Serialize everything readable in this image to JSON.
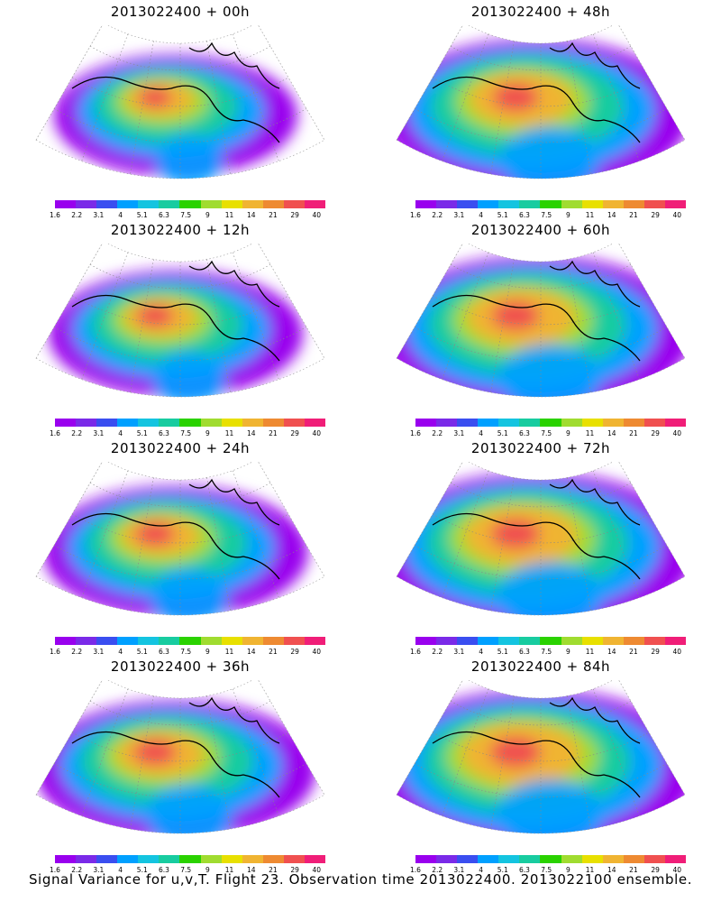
{
  "panels": [
    {
      "title": "2013022400 + 00h",
      "intensity": 0.35,
      "spread": 0.25
    },
    {
      "title": "2013022400 + 48h",
      "intensity": 0.75,
      "spread": 0.85
    },
    {
      "title": "2013022400 + 12h",
      "intensity": 0.45,
      "spread": 0.35
    },
    {
      "title": "2013022400 + 60h",
      "intensity": 0.8,
      "spread": 0.9
    },
    {
      "title": "2013022400 + 24h",
      "intensity": 0.55,
      "spread": 0.45
    },
    {
      "title": "2013022400 + 72h",
      "intensity": 0.85,
      "spread": 0.95
    },
    {
      "title": "2013022400 + 36h",
      "intensity": 0.65,
      "spread": 0.6
    },
    {
      "title": "2013022400 + 84h",
      "intensity": 0.9,
      "spread": 1.0
    }
  ],
  "colorbar": {
    "labels": [
      "1.6",
      "2.2",
      "3.1",
      "4",
      "5.1",
      "6.3",
      "7.5",
      "9",
      "11",
      "14",
      "21",
      "29",
      "40"
    ],
    "colors": [
      "#9900ee",
      "#7a2ae8",
      "#3a4ef0",
      "#00a0ff",
      "#14c4e0",
      "#18cca0",
      "#2ad200",
      "#a0dc30",
      "#e8e000",
      "#f0b432",
      "#ee8a32",
      "#f05050",
      "#f01e78"
    ]
  },
  "footer": "Signal Variance for u,v,T. Flight 23. Observation time 2013022400. 2013022100 ensemble."
}
